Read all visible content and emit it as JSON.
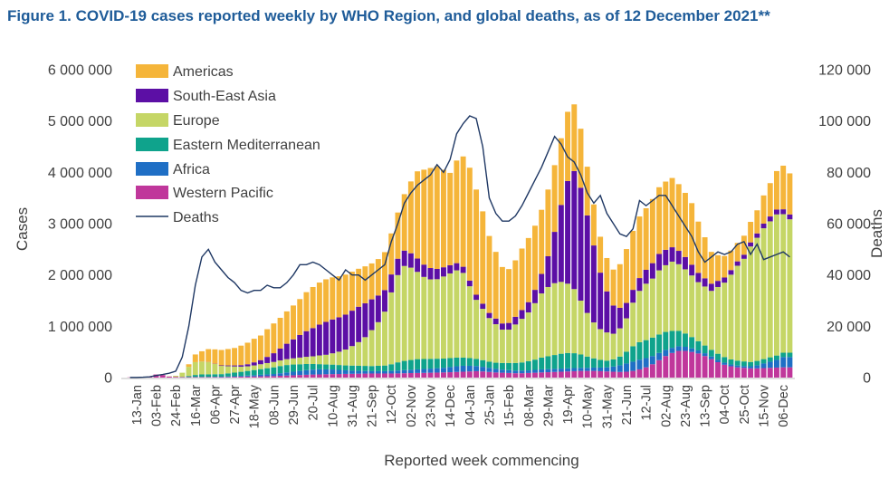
{
  "chart_data": {
    "type": "bar",
    "stacked": true,
    "title": "Figure 1. COVID-19 cases reported weekly by WHO Region, and global deaths, as of 12 December 2021**",
    "xlabel": "Reported week commencing",
    "ylabel": "Cases",
    "y2label": "Deaths",
    "ylim": [
      0,
      6000000
    ],
    "y2lim": [
      0,
      120000
    ],
    "yticks": [
      "0",
      "1 000 000",
      "2 000 000",
      "3 000 000",
      "4 000 000",
      "5 000 000",
      "6 000 000"
    ],
    "y2ticks": [
      "0",
      "20 000",
      "40 000",
      "60 000",
      "80 000",
      "100 000",
      "120 000"
    ],
    "x_tick_labels": [
      {
        "index": 1,
        "label": "13-Jan"
      },
      {
        "index": 4,
        "label": "03-Feb"
      },
      {
        "index": 7,
        "label": "24-Feb"
      },
      {
        "index": 10,
        "label": "16-Mar"
      },
      {
        "index": 13,
        "label": "06-Apr"
      },
      {
        "index": 16,
        "label": "27-Apr"
      },
      {
        "index": 19,
        "label": "18-May"
      },
      {
        "index": 22,
        "label": "08-Jun"
      },
      {
        "index": 25,
        "label": "29-Jun"
      },
      {
        "index": 28,
        "label": "20-Jul"
      },
      {
        "index": 31,
        "label": "10-Aug"
      },
      {
        "index": 34,
        "label": "31-Aug"
      },
      {
        "index": 37,
        "label": "21-Sep"
      },
      {
        "index": 40,
        "label": "12-Oct"
      },
      {
        "index": 43,
        "label": "02-Nov"
      },
      {
        "index": 46,
        "label": "23-Nov"
      },
      {
        "index": 49,
        "label": "14-Dec"
      },
      {
        "index": 52,
        "label": "04-Jan"
      },
      {
        "index": 55,
        "label": "25-Jan"
      },
      {
        "index": 58,
        "label": "15-Feb"
      },
      {
        "index": 61,
        "label": "08-Mar"
      },
      {
        "index": 64,
        "label": "29-Mar"
      },
      {
        "index": 67,
        "label": "19-Apr"
      },
      {
        "index": 70,
        "label": "10-May"
      },
      {
        "index": 73,
        "label": "31-May"
      },
      {
        "index": 76,
        "label": "21-Jun"
      },
      {
        "index": 79,
        "label": "12-Jul"
      },
      {
        "index": 82,
        "label": "02-Aug"
      },
      {
        "index": 85,
        "label": "23-Aug"
      },
      {
        "index": 88,
        "label": "13-Sep"
      },
      {
        "index": 91,
        "label": "04-Oct"
      },
      {
        "index": 94,
        "label": "25-Oct"
      },
      {
        "index": 97,
        "label": "15-Nov"
      },
      {
        "index": 100,
        "label": "06-Dec"
      }
    ],
    "legend": {
      "placement": "top-left-inside"
    },
    "series": [
      {
        "name": "Western Pacific",
        "color": "#c0379b",
        "values": [
          5000,
          8000,
          10000,
          20000,
          60000,
          50000,
          20000,
          15000,
          10000,
          10000,
          10000,
          10000,
          10000,
          10000,
          10000,
          12000,
          15000,
          18000,
          20000,
          22000,
          25000,
          28000,
          30000,
          35000,
          40000,
          45000,
          50000,
          55000,
          60000,
          62000,
          65000,
          68000,
          70000,
          72000,
          74000,
          76000,
          78000,
          80000,
          80000,
          80000,
          80000,
          82000,
          85000,
          88000,
          90000,
          92000,
          95000,
          98000,
          100000,
          105000,
          110000,
          115000,
          120000,
          125000,
          120000,
          110000,
          100000,
          95000,
          90000,
          85000,
          85000,
          90000,
          95000,
          100000,
          105000,
          110000,
          115000,
          120000,
          125000,
          130000,
          130000,
          130000,
          125000,
          120000,
          115000,
          110000,
          115000,
          130000,
          160000,
          200000,
          260000,
          340000,
          420000,
          480000,
          520000,
          520000,
          500000,
          470000,
          420000,
          360000,
          300000,
          250000,
          220000,
          200000,
          190000,
          180000,
          180000,
          185000,
          190000,
          195000,
          200000,
          200000
        ]
      },
      {
        "name": "Africa",
        "color": "#1f6fc5",
        "values": [
          0,
          0,
          0,
          0,
          0,
          0,
          0,
          0,
          0,
          0,
          1000,
          2000,
          3000,
          5000,
          8000,
          10000,
          12000,
          15000,
          20000,
          25000,
          30000,
          35000,
          40000,
          50000,
          60000,
          70000,
          80000,
          90000,
          95000,
          100000,
          95000,
          90000,
          80000,
          70000,
          60000,
          55000,
          50000,
          45000,
          45000,
          45000,
          50000,
          55000,
          60000,
          65000,
          70000,
          75000,
          80000,
          85000,
          90000,
          100000,
          110000,
          115000,
          110000,
          100000,
          90000,
          80000,
          70000,
          60000,
          55000,
          50000,
          50000,
          50000,
          55000,
          60000,
          60000,
          60000,
          60000,
          60000,
          60000,
          60000,
          60000,
          65000,
          70000,
          80000,
          100000,
          130000,
          160000,
          180000,
          190000,
          180000,
          160000,
          140000,
          120000,
          100000,
          90000,
          80000,
          70000,
          60000,
          55000,
          50000,
          45000,
          40000,
          35000,
          35000,
          35000,
          40000,
          60000,
          90000,
          120000,
          150000,
          200000,
          200000
        ]
      },
      {
        "name": "Eastern Mediterranean",
        "color": "#0fa38c",
        "values": [
          0,
          0,
          0,
          0,
          0,
          0,
          0,
          0,
          5000,
          20000,
          40000,
          50000,
          50000,
          50000,
          50000,
          60000,
          70000,
          80000,
          90000,
          100000,
          110000,
          120000,
          130000,
          140000,
          145000,
          140000,
          130000,
          120000,
          110000,
          100000,
          95000,
          95000,
          95000,
          95000,
          100000,
          100000,
          100000,
          100000,
          105000,
          110000,
          130000,
          160000,
          180000,
          190000,
          200000,
          195000,
          190000,
          185000,
          180000,
          175000,
          170000,
          160000,
          150000,
          140000,
          130000,
          120000,
          120000,
          130000,
          140000,
          150000,
          160000,
          180000,
          200000,
          230000,
          250000,
          270000,
          290000,
          300000,
          290000,
          260000,
          220000,
          180000,
          150000,
          130000,
          140000,
          170000,
          230000,
          300000,
          340000,
          350000,
          360000,
          360000,
          350000,
          330000,
          300000,
          260000,
          220000,
          180000,
          150000,
          130000,
          120000,
          110000,
          100000,
          95000,
          90000,
          85000,
          85000,
          85000,
          85000,
          85000,
          85000,
          85000
        ]
      },
      {
        "name": "Europe",
        "color": "#c5d666",
        "values": [
          0,
          0,
          0,
          0,
          0,
          0,
          5000,
          20000,
          80000,
          180000,
          250000,
          250000,
          240000,
          200000,
          160000,
          140000,
          120000,
          100000,
          90000,
          90000,
          95000,
          100000,
          105000,
          110000,
          115000,
          120000,
          130000,
          140000,
          150000,
          170000,
          190000,
          220000,
          260000,
          310000,
          380000,
          460000,
          560000,
          700000,
          850000,
          1050000,
          1400000,
          1700000,
          1850000,
          1800000,
          1700000,
          1600000,
          1550000,
          1550000,
          1600000,
          1650000,
          1700000,
          1650000,
          1400000,
          1150000,
          1000000,
          850000,
          750000,
          650000,
          650000,
          750000,
          850000,
          950000,
          1100000,
          1250000,
          1350000,
          1400000,
          1400000,
          1350000,
          1250000,
          1050000,
          850000,
          700000,
          600000,
          550000,
          500000,
          550000,
          650000,
          850000,
          1000000,
          1100000,
          1150000,
          1250000,
          1300000,
          1350000,
          1300000,
          1250000,
          1200000,
          1150000,
          1150000,
          1150000,
          1300000,
          1450000,
          1650000,
          1850000,
          2000000,
          2250000,
          2400000,
          2550000,
          2650000,
          2750000,
          2700000,
          2600000
        ]
      },
      {
        "name": "South-East Asia",
        "color": "#5c0fa5",
        "values": [
          0,
          0,
          0,
          0,
          0,
          0,
          0,
          0,
          0,
          0,
          0,
          1000,
          2000,
          5000,
          10000,
          15000,
          20000,
          30000,
          40000,
          60000,
          80000,
          120000,
          170000,
          230000,
          300000,
          370000,
          440000,
          500000,
          550000,
          600000,
          640000,
          660000,
          670000,
          680000,
          690000,
          690000,
          660000,
          600000,
          520000,
          420000,
          350000,
          320000,
          300000,
          280000,
          260000,
          240000,
          220000,
          200000,
          180000,
          160000,
          140000,
          120000,
          110000,
          100000,
          100000,
          100000,
          110000,
          120000,
          130000,
          150000,
          170000,
          200000,
          260000,
          380000,
          600000,
          1000000,
          1500000,
          2000000,
          2300000,
          2200000,
          1900000,
          1500000,
          1100000,
          800000,
          550000,
          400000,
          300000,
          250000,
          250000,
          270000,
          300000,
          320000,
          300000,
          280000,
          260000,
          240000,
          210000,
          180000,
          160000,
          140000,
          120000,
          100000,
          90000,
          85000,
          80000,
          80000,
          85000,
          90000,
          95000,
          95000,
          95000,
          95000
        ]
      },
      {
        "name": "Americas",
        "color": "#f5b53a",
        "values": [
          0,
          0,
          0,
          0,
          0,
          0,
          0,
          0,
          0,
          50000,
          150000,
          200000,
          250000,
          280000,
          300000,
          320000,
          340000,
          380000,
          420000,
          460000,
          480000,
          540000,
          580000,
          600000,
          630000,
          660000,
          700000,
          760000,
          800000,
          820000,
          830000,
          820000,
          800000,
          780000,
          760000,
          740000,
          720000,
          700000,
          710000,
          740000,
          800000,
          900000,
          1100000,
          1400000,
          1700000,
          1850000,
          1950000,
          2000000,
          1900000,
          1800000,
          2000000,
          2150000,
          2200000,
          2050000,
          1800000,
          1500000,
          1300000,
          1100000,
          1050000,
          1100000,
          1200000,
          1250000,
          1250000,
          1250000,
          1300000,
          1300000,
          1300000,
          1350000,
          1300000,
          1150000,
          950000,
          800000,
          700000,
          650000,
          700000,
          850000,
          1050000,
          1150000,
          1200000,
          1200000,
          1250000,
          1300000,
          1330000,
          1350000,
          1300000,
          1250000,
          1200000,
          1000000,
          800000,
          620000,
          500000,
          420000,
          380000,
          360000,
          370000,
          400000,
          450000,
          550000,
          650000,
          750000,
          850000,
          800000
        ]
      }
    ],
    "deaths": {
      "name": "Deaths",
      "color": "#1f3864",
      "values": [
        50,
        80,
        150,
        300,
        800,
        1200,
        1700,
        2500,
        8000,
        20000,
        36000,
        47000,
        50000,
        45000,
        42000,
        39000,
        37000,
        34000,
        33000,
        34000,
        34000,
        36000,
        35000,
        35000,
        37000,
        40000,
        44000,
        44000,
        45000,
        44000,
        42000,
        40000,
        38000,
        42000,
        40000,
        40000,
        38000,
        40000,
        42000,
        44000,
        53000,
        60000,
        68000,
        72000,
        75000,
        77000,
        79000,
        83000,
        80000,
        85000,
        95000,
        99000,
        102000,
        101000,
        90000,
        70000,
        64000,
        61000,
        61000,
        63000,
        67000,
        72000,
        77000,
        82000,
        88000,
        94000,
        91000,
        86000,
        84000,
        79000,
        72000,
        68000,
        71000,
        64000,
        60000,
        56000,
        55000,
        58000,
        69000,
        67000,
        69000,
        71000,
        71000,
        67000,
        63000,
        59000,
        55000,
        49000,
        45000,
        47000,
        49000,
        48000,
        49000,
        52000,
        53000,
        48000,
        52000,
        46000,
        47000,
        48000,
        49000,
        47000
      ]
    }
  }
}
